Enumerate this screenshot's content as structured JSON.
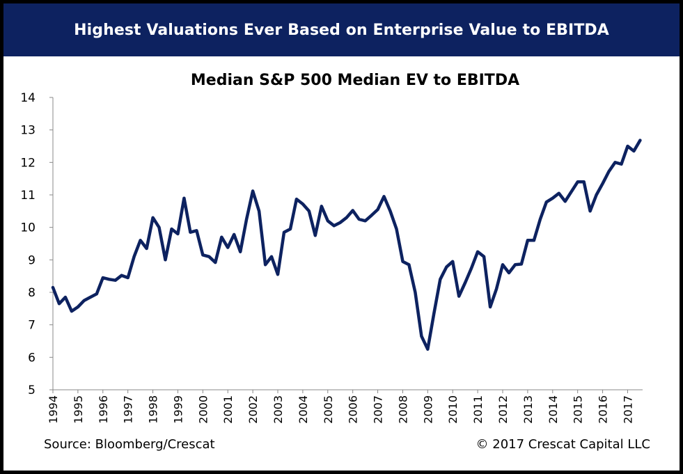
{
  "banner": {
    "title": "Highest Valuations Ever Based on Enterprise Value to EBITDA"
  },
  "footer": {
    "source": "Source: Bloomberg/Crescat",
    "copyright": "© 2017 Crescat Capital LLC"
  },
  "colors": {
    "banner": "#0d2260",
    "line": "#0d2260",
    "frame": "#000000"
  },
  "chart_data": {
    "type": "line",
    "title": "Median S&P 500 Median EV to EBITDA",
    "xlabel": "",
    "ylabel": "",
    "ylim": [
      5,
      14
    ],
    "xlim": [
      1994,
      2017.6
    ],
    "grid": false,
    "legend": "none",
    "yticks": [
      "5",
      "6",
      "7",
      "8",
      "9",
      "10",
      "11",
      "12",
      "13",
      "14"
    ],
    "xticks": [
      "1994",
      "1995",
      "1996",
      "1997",
      "1998",
      "1999",
      "2000",
      "2001",
      "2002",
      "2003",
      "2004",
      "2005",
      "2006",
      "2007",
      "2008",
      "2009",
      "2010",
      "2011",
      "2012",
      "2013",
      "2014",
      "2015",
      "2016",
      "2017"
    ],
    "series": [
      {
        "x": [
          1994.0,
          1994.25,
          1994.5,
          1994.75,
          1995.0,
          1995.25,
          1995.5,
          1995.75,
          1996.0,
          1996.25,
          1996.5,
          1996.75,
          1997.0,
          1997.25,
          1997.5,
          1997.75,
          1998.0,
          1998.25,
          1998.5,
          1998.75,
          1999.0,
          1999.25,
          1999.5,
          1999.75,
          2000.0,
          2000.25,
          2000.5,
          2000.75,
          2001.0,
          2001.25,
          2001.5,
          2001.75,
          2002.0,
          2002.25,
          2002.5,
          2002.75,
          2003.0,
          2003.25,
          2003.5,
          2003.75,
          2004.0,
          2004.25,
          2004.5,
          2004.75,
          2005.0,
          2005.25,
          2005.5,
          2005.75,
          2006.0,
          2006.25,
          2006.5,
          2006.75,
          2007.0,
          2007.25,
          2007.5,
          2007.75,
          2008.0,
          2008.25,
          2008.5,
          2008.75,
          2009.0,
          2009.25,
          2009.5,
          2009.75,
          2010.0,
          2010.25,
          2010.5,
          2010.75,
          2011.0,
          2011.25,
          2011.5,
          2011.75,
          2012.0,
          2012.25,
          2012.5,
          2012.75,
          2013.0,
          2013.25,
          2013.5,
          2013.75,
          2014.0,
          2014.25,
          2014.5,
          2014.75,
          2015.0,
          2015.25,
          2015.5,
          2015.75,
          2016.0,
          2016.25,
          2016.5,
          2016.75,
          2017.0,
          2017.25,
          2017.5
        ],
        "values": [
          8.15,
          7.65,
          7.85,
          7.42,
          7.55,
          7.75,
          7.85,
          7.95,
          8.45,
          8.4,
          8.37,
          8.52,
          8.45,
          9.1,
          9.6,
          9.35,
          10.3,
          10.0,
          9.0,
          9.95,
          9.8,
          10.9,
          9.85,
          9.9,
          9.15,
          9.1,
          8.92,
          9.7,
          9.38,
          9.78,
          9.25,
          10.25,
          11.12,
          10.5,
          8.85,
          9.1,
          8.55,
          9.85,
          9.95,
          10.87,
          10.72,
          10.5,
          9.75,
          10.65,
          10.2,
          10.05,
          10.15,
          10.3,
          10.52,
          10.25,
          10.2,
          10.37,
          10.55,
          10.95,
          10.5,
          9.95,
          8.95,
          8.85,
          8.0,
          6.65,
          6.25,
          7.35,
          8.4,
          8.78,
          8.95,
          7.88,
          8.3,
          8.75,
          9.25,
          9.1,
          7.55,
          8.1,
          8.85,
          8.6,
          8.85,
          8.87,
          9.6,
          9.6,
          10.25,
          10.78,
          10.9,
          11.05,
          10.8,
          11.1,
          11.4,
          11.4,
          10.5,
          11.0,
          11.35,
          11.72,
          12.0,
          11.95,
          12.5,
          12.35,
          12.68
        ]
      }
    ]
  }
}
